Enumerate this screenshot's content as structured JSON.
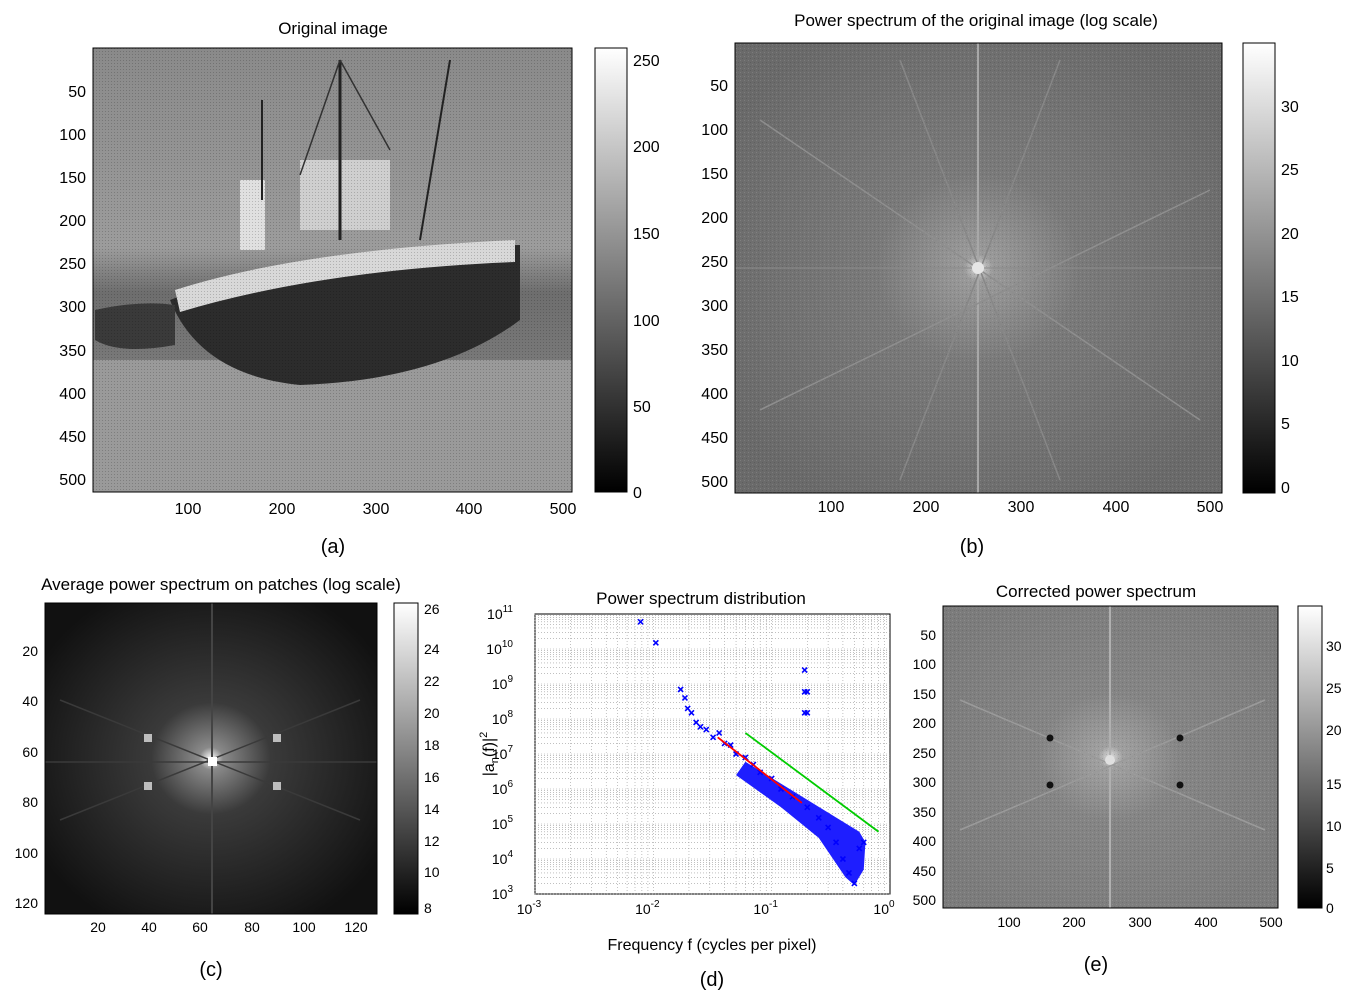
{
  "panels": {
    "a": {
      "title": "Original image",
      "caption": "(a)",
      "xticks": [
        "100",
        "200",
        "300",
        "400",
        "500"
      ],
      "yticks": [
        "50",
        "100",
        "150",
        "200",
        "250",
        "300",
        "350",
        "400",
        "450",
        "500"
      ],
      "colorbar_ticks": [
        "0",
        "50",
        "100",
        "150",
        "200",
        "250"
      ],
      "colormap": "gray"
    },
    "b": {
      "title": "Power spectrum of the original image (log scale)",
      "caption": "(b)",
      "xticks": [
        "100",
        "200",
        "300",
        "400",
        "500"
      ],
      "yticks": [
        "50",
        "100",
        "150",
        "200",
        "250",
        "300",
        "350",
        "400",
        "450",
        "500"
      ],
      "colorbar_ticks": [
        "0",
        "5",
        "10",
        "15",
        "20",
        "25",
        "30"
      ],
      "colormap": "gray"
    },
    "c": {
      "title": "Average power spectrum on patches (log scale)",
      "caption": "(c)",
      "xticks": [
        "20",
        "40",
        "60",
        "80",
        "100",
        "120"
      ],
      "yticks": [
        "20",
        "40",
        "60",
        "80",
        "100",
        "120"
      ],
      "colorbar_ticks": [
        "8",
        "10",
        "12",
        "14",
        "16",
        "18",
        "20",
        "22",
        "24",
        "26"
      ],
      "colormap": "gray"
    },
    "d": {
      "title": "Power spectrum distribution",
      "caption": "(d)",
      "xlabel": "Frequency f (cycles per pixel)",
      "ylabel_base": "|a",
      "ylabel_sub": "n",
      "ylabel_rest": "(f)|",
      "ylabel_sup": "2",
      "xtick_base": "10",
      "xtick_exps": [
        "-3",
        "-2",
        "-1",
        "0"
      ],
      "ytick_base": "10",
      "ytick_exps": [
        "3",
        "4",
        "5",
        "6",
        "7",
        "8",
        "9",
        "10",
        "11"
      ]
    },
    "e": {
      "title": "Corrected power spectrum",
      "caption": "(e)",
      "xticks": [
        "100",
        "200",
        "300",
        "400",
        "500"
      ],
      "yticks": [
        "50",
        "100",
        "150",
        "200",
        "250",
        "300",
        "350",
        "400",
        "450",
        "500"
      ],
      "colorbar_ticks": [
        "0",
        "5",
        "10",
        "15",
        "20",
        "25",
        "30"
      ],
      "colormap": "gray"
    }
  },
  "chart_data": {
    "type": "scatter",
    "title": "Power spectrum distribution",
    "xlabel": "Frequency f (cycles per pixel)",
    "ylabel": "|a_n(f)|^2",
    "xscale": "log",
    "yscale": "log",
    "xlim": [
      0.001,
      1
    ],
    "ylim": [
      1000,
      100000000000
    ],
    "grid": true,
    "series": [
      {
        "color": "#0000ff",
        "marker": "x",
        "points": [
          [
            0.0078,
            60000000000
          ],
          [
            0.0105,
            15000000000
          ],
          [
            0.017,
            700000000
          ],
          [
            0.0185,
            400000000
          ],
          [
            0.0195,
            200000000
          ],
          [
            0.021,
            150000000
          ],
          [
            0.023,
            80000000
          ],
          [
            0.025,
            60000000
          ],
          [
            0.028,
            50000000
          ],
          [
            0.032,
            30000000
          ],
          [
            0.036,
            40000000
          ],
          [
            0.04,
            20000000
          ],
          [
            0.045,
            18000000
          ],
          [
            0.05,
            10000000
          ],
          [
            0.06,
            8000000
          ],
          [
            0.07,
            5000000
          ],
          [
            0.08,
            3000000
          ],
          [
            0.1,
            2000000
          ],
          [
            0.12,
            1000000
          ],
          [
            0.15,
            600000
          ],
          [
            0.19,
            2500000000
          ],
          [
            0.19,
            600000000
          ],
          [
            0.2,
            600000000
          ],
          [
            0.19,
            150000000
          ],
          [
            0.2,
            150000000
          ],
          [
            0.2,
            300000
          ],
          [
            0.25,
            150000
          ],
          [
            0.3,
            80000
          ],
          [
            0.35,
            30000
          ],
          [
            0.4,
            10000
          ],
          [
            0.45,
            4000
          ],
          [
            0.5,
            2000
          ],
          [
            0.55,
            20000
          ],
          [
            0.6,
            30000
          ]
        ]
      }
    ],
    "fit_lines": [
      {
        "color": "#ff0000",
        "x": [
          0.035,
          0.18
        ],
        "y": [
          30000000,
          400000
        ]
      },
      {
        "color": "#00cc00",
        "x": [
          0.06,
          0.8
        ],
        "y": [
          40000000,
          60000
        ]
      }
    ]
  }
}
